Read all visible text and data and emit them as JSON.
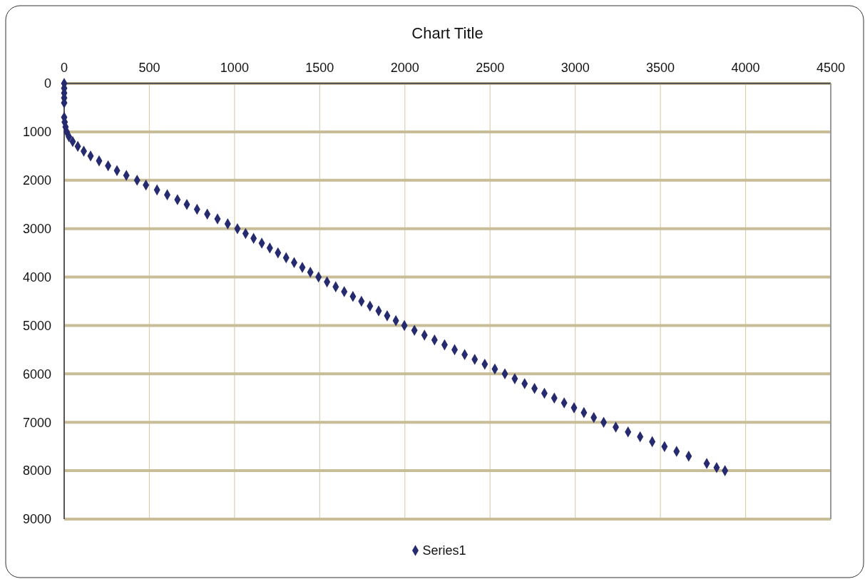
{
  "chart_data": {
    "type": "scatter",
    "title": "Chart Title",
    "x": [
      0,
      0,
      0,
      0,
      0,
      0,
      3,
      8,
      15,
      28,
      50,
      80,
      115,
      155,
      205,
      258,
      310,
      365,
      428,
      480,
      545,
      605,
      665,
      720,
      780,
      840,
      900,
      960,
      1017,
      1065,
      1112,
      1160,
      1207,
      1255,
      1303,
      1350,
      1398,
      1445,
      1493,
      1543,
      1594,
      1644,
      1695,
      1745,
      1795,
      1846,
      1896,
      1947,
      1997,
      2056,
      2115,
      2174,
      2233,
      2292,
      2351,
      2410,
      2469,
      2528,
      2587,
      2645,
      2703,
      2761,
      2819,
      2877,
      2935,
      2993,
      3051,
      3109,
      3167,
      3238,
      3310,
      3381,
      3452,
      3524,
      3595,
      3666,
      3772,
      3830,
      3879
    ],
    "series": [
      {
        "name": "Series1",
        "color": "#262a6e",
        "values": [
          0,
          100,
          200,
          300,
          400,
          700,
          800,
          900,
          1000,
          1100,
          1200,
          1300,
          1400,
          1500,
          1600,
          1700,
          1800,
          1900,
          2000,
          2100,
          2200,
          2300,
          2400,
          2500,
          2600,
          2700,
          2800,
          2900,
          3000,
          3100,
          3200,
          3300,
          3400,
          3500,
          3600,
          3700,
          3800,
          3900,
          4000,
          4100,
          4200,
          4300,
          4400,
          4500,
          4600,
          4700,
          4800,
          4900,
          5000,
          5100,
          5200,
          5300,
          5400,
          5500,
          5600,
          5700,
          5800,
          5900,
          6000,
          6100,
          6200,
          6300,
          6400,
          6500,
          6600,
          6700,
          6800,
          6900,
          7000,
          7100,
          7200,
          7300,
          7400,
          7500,
          7600,
          7700,
          7850,
          7937,
          8000
        ]
      }
    ],
    "xlim": [
      0,
      4500
    ],
    "xticks": [
      0,
      500,
      1000,
      1500,
      2000,
      2500,
      3000,
      3500,
      4000,
      4500
    ],
    "ylim": [
      9000,
      0
    ],
    "yticks": [
      0,
      1000,
      2000,
      3000,
      4000,
      5000,
      6000,
      7000,
      8000,
      9000
    ],
    "grid": true,
    "legend": "bottom",
    "marker": "diamond"
  }
}
